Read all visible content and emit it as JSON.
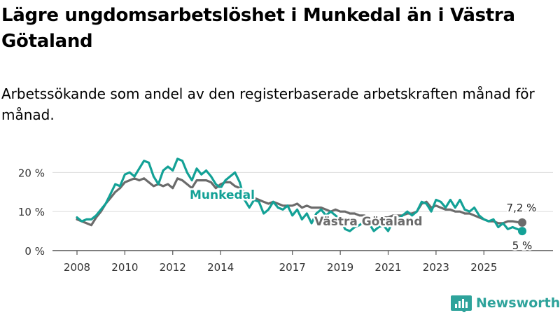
{
  "title": "Lägre ungdomsarbetslöshet i Munkedal än i Västra Götaland",
  "subtitle": "Arbetssökande som andel av den registerbaserade arbetskraften månad för månad.",
  "brand": {
    "name": "Newsworthy"
  },
  "colors": {
    "munkedal": "#13a196",
    "vastra": "#6b6b6b",
    "axis": "#555555",
    "grid": "#dddddd"
  },
  "chart_data": {
    "type": "line",
    "title": "Lägre ungdomsarbetslöshet i Munkedal än i Västra Götaland",
    "xlabel": "",
    "ylabel": "",
    "ylim": [
      0,
      25
    ],
    "yticks": [
      0,
      10,
      20
    ],
    "ytick_labels": [
      "0 %",
      "10 %",
      "20 %"
    ],
    "xticks": [
      2008,
      2010,
      2012,
      2014,
      2017,
      2019,
      2021,
      2023,
      2025
    ],
    "xtick_labels": [
      "2008",
      "2010",
      "2012",
      "2014",
      "2017",
      "2019",
      "2021",
      "2023",
      "2025"
    ],
    "grid": "horizontal",
    "series": [
      {
        "name": "Munkedal",
        "end_label": "5 %",
        "points": [
          [
            2008.0,
            8.5
          ],
          [
            2008.2,
            7.5
          ],
          [
            2008.4,
            8
          ],
          [
            2008.6,
            8
          ],
          [
            2008.8,
            9
          ],
          [
            2009.0,
            10.5
          ],
          [
            2009.2,
            12
          ],
          [
            2009.4,
            14.5
          ],
          [
            2009.6,
            17
          ],
          [
            2009.8,
            16.5
          ],
          [
            2010.0,
            19.5
          ],
          [
            2010.2,
            20
          ],
          [
            2010.4,
            19
          ],
          [
            2010.6,
            21
          ],
          [
            2010.8,
            23
          ],
          [
            2011.0,
            22.5
          ],
          [
            2011.2,
            19
          ],
          [
            2011.4,
            17
          ],
          [
            2011.6,
            20.5
          ],
          [
            2011.8,
            21.5
          ],
          [
            2012.0,
            20.5
          ],
          [
            2012.2,
            23.5
          ],
          [
            2012.4,
            23
          ],
          [
            2012.6,
            20
          ],
          [
            2012.8,
            18
          ],
          [
            2013.0,
            21
          ],
          [
            2013.2,
            19.5
          ],
          [
            2013.4,
            20.5
          ],
          [
            2013.6,
            19
          ],
          [
            2013.8,
            17
          ],
          [
            2014.0,
            16
          ],
          [
            2014.2,
            18
          ],
          [
            2014.4,
            19
          ],
          [
            2014.6,
            20
          ],
          [
            2014.8,
            17.5
          ],
          [
            2015.0,
            13
          ],
          [
            2015.2,
            11
          ],
          [
            2015.4,
            13
          ],
          [
            2015.6,
            12.5
          ],
          [
            2015.8,
            9.5
          ],
          [
            2016.0,
            10.5
          ],
          [
            2016.2,
            12.5
          ],
          [
            2016.4,
            11
          ],
          [
            2016.6,
            10.5
          ],
          [
            2016.8,
            11.5
          ],
          [
            2017.0,
            9
          ],
          [
            2017.2,
            10.5
          ],
          [
            2017.4,
            8
          ],
          [
            2017.6,
            9.5
          ],
          [
            2017.8,
            7
          ],
          [
            2018.0,
            9.5
          ],
          [
            2018.2,
            10.5
          ],
          [
            2018.4,
            9
          ],
          [
            2018.6,
            10
          ],
          [
            2018.8,
            9
          ],
          [
            2019.0,
            8
          ],
          [
            2019.2,
            5.5
          ],
          [
            2019.4,
            5
          ],
          [
            2019.6,
            6
          ],
          [
            2019.8,
            6.5
          ],
          [
            2020.0,
            7.5
          ],
          [
            2020.2,
            7
          ],
          [
            2020.4,
            5
          ],
          [
            2020.6,
            6
          ],
          [
            2020.8,
            6.5
          ],
          [
            2021.0,
            5
          ],
          [
            2021.2,
            7.5
          ],
          [
            2021.4,
            8
          ],
          [
            2021.6,
            9
          ],
          [
            2021.8,
            10
          ],
          [
            2022.0,
            9
          ],
          [
            2022.2,
            10
          ],
          [
            2022.4,
            12.5
          ],
          [
            2022.6,
            12
          ],
          [
            2022.8,
            10
          ],
          [
            2023.0,
            13
          ],
          [
            2023.2,
            12.5
          ],
          [
            2023.4,
            11
          ],
          [
            2023.6,
            13
          ],
          [
            2023.8,
            11
          ],
          [
            2024.0,
            13
          ],
          [
            2024.2,
            10.5
          ],
          [
            2024.4,
            10
          ],
          [
            2024.6,
            11
          ],
          [
            2024.8,
            9
          ],
          [
            2025.0,
            8
          ],
          [
            2025.2,
            7.5
          ],
          [
            2025.4,
            8
          ],
          [
            2025.6,
            6
          ],
          [
            2025.8,
            7
          ],
          [
            2026.0,
            5.5
          ],
          [
            2026.2,
            6
          ],
          [
            2026.4,
            5.5
          ],
          [
            2026.6,
            5
          ]
        ]
      },
      {
        "name": "Västra Götaland",
        "end_label": "7,2 %",
        "points": [
          [
            2008.0,
            8
          ],
          [
            2008.2,
            7.5
          ],
          [
            2008.4,
            7
          ],
          [
            2008.6,
            6.5
          ],
          [
            2008.8,
            8.5
          ],
          [
            2009.0,
            10
          ],
          [
            2009.2,
            12
          ],
          [
            2009.4,
            13.5
          ],
          [
            2009.6,
            15
          ],
          [
            2009.8,
            16
          ],
          [
            2010.0,
            17.5
          ],
          [
            2010.2,
            18
          ],
          [
            2010.4,
            18.5
          ],
          [
            2010.6,
            18
          ],
          [
            2010.8,
            18.5
          ],
          [
            2011.0,
            17.5
          ],
          [
            2011.2,
            16.5
          ],
          [
            2011.4,
            17
          ],
          [
            2011.6,
            16.5
          ],
          [
            2011.8,
            17
          ],
          [
            2012.0,
            16
          ],
          [
            2012.2,
            18.5
          ],
          [
            2012.4,
            18
          ],
          [
            2012.6,
            17
          ],
          [
            2012.8,
            16
          ],
          [
            2013.0,
            18
          ],
          [
            2013.2,
            18
          ],
          [
            2013.4,
            18
          ],
          [
            2013.6,
            17.5
          ],
          [
            2013.8,
            16
          ],
          [
            2014.0,
            17
          ],
          [
            2014.2,
            17.5
          ],
          [
            2014.4,
            17.5
          ],
          [
            2014.6,
            16.5
          ],
          [
            2014.8,
            16
          ],
          [
            2015.0,
            15
          ],
          [
            2015.2,
            14
          ],
          [
            2015.4,
            13.5
          ],
          [
            2015.6,
            13
          ],
          [
            2015.8,
            12.5
          ],
          [
            2016.0,
            12
          ],
          [
            2016.2,
            12.5
          ],
          [
            2016.4,
            12
          ],
          [
            2016.6,
            11.5
          ],
          [
            2016.8,
            11.5
          ],
          [
            2017.0,
            11.5
          ],
          [
            2017.2,
            12
          ],
          [
            2017.4,
            11
          ],
          [
            2017.6,
            11.5
          ],
          [
            2017.8,
            11
          ],
          [
            2018.0,
            11
          ],
          [
            2018.2,
            11
          ],
          [
            2018.4,
            10.5
          ],
          [
            2018.6,
            10
          ],
          [
            2018.8,
            10.5
          ],
          [
            2019.0,
            10
          ],
          [
            2019.2,
            10
          ],
          [
            2019.4,
            9.5
          ],
          [
            2019.6,
            9.5
          ],
          [
            2019.8,
            9
          ],
          [
            2020.0,
            9
          ],
          [
            2020.2,
            8.5
          ],
          [
            2020.4,
            8.5
          ],
          [
            2020.6,
            8.5
          ],
          [
            2020.8,
            8.5
          ],
          [
            2021.0,
            8.5
          ],
          [
            2021.2,
            9
          ],
          [
            2021.4,
            9
          ],
          [
            2021.6,
            9
          ],
          [
            2021.8,
            9.5
          ],
          [
            2022.0,
            9.5
          ],
          [
            2022.2,
            10
          ],
          [
            2022.4,
            12
          ],
          [
            2022.6,
            12.5
          ],
          [
            2022.8,
            11
          ],
          [
            2023.0,
            11.5
          ],
          [
            2023.2,
            11
          ],
          [
            2023.4,
            10.5
          ],
          [
            2023.6,
            10.5
          ],
          [
            2023.8,
            10
          ],
          [
            2024.0,
            10
          ],
          [
            2024.2,
            9.5
          ],
          [
            2024.4,
            9.5
          ],
          [
            2024.6,
            9
          ],
          [
            2024.8,
            8.5
          ],
          [
            2025.0,
            8
          ],
          [
            2025.2,
            7.5
          ],
          [
            2025.4,
            7.5
          ],
          [
            2025.6,
            7
          ],
          [
            2025.8,
            7
          ],
          [
            2026.0,
            7.5
          ],
          [
            2026.2,
            7.5
          ],
          [
            2026.4,
            7.3
          ],
          [
            2026.6,
            7.2
          ]
        ]
      }
    ]
  }
}
